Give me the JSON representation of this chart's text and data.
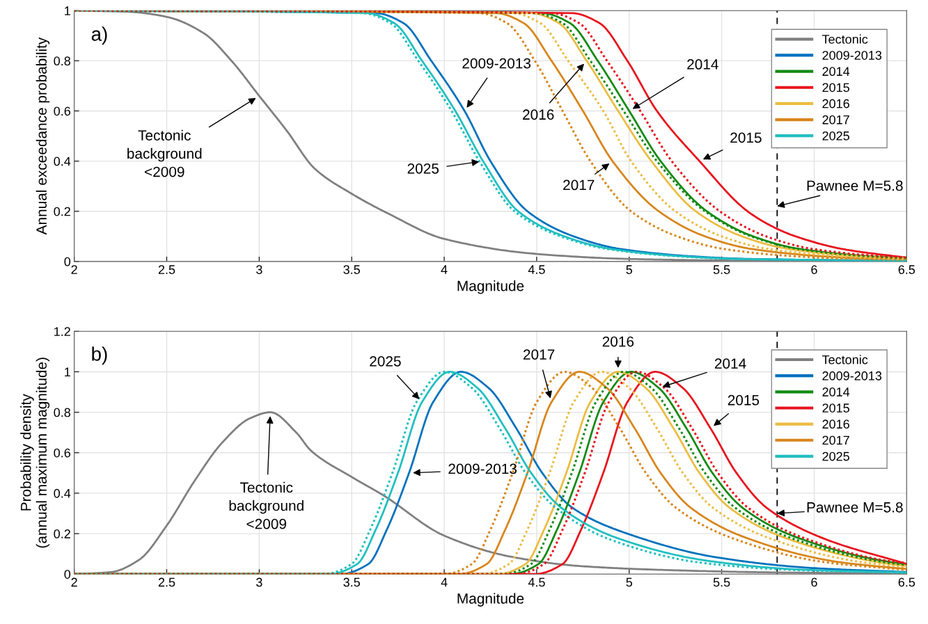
{
  "chart_data": [
    {
      "type": "line",
      "xlabel": "Magnitude",
      "ylabel": "Annual exceedance probability",
      "xlim": [
        2,
        6.5
      ],
      "ylim": [
        0,
        1
      ],
      "xticks": [
        2,
        2.5,
        3,
        3.5,
        4,
        4.5,
        5,
        5.5,
        6,
        6.5
      ],
      "yticks": [
        0,
        0.2,
        0.4,
        0.6,
        0.8,
        1
      ],
      "grid": true,
      "legend": "top right",
      "marker": "none",
      "series": [
        {
          "name": "Tectonic",
          "color": "#808080",
          "x": [
            2,
            2.3,
            2.5,
            2.7,
            2.85,
            3.0,
            3.15,
            3.3,
            3.5,
            3.7,
            4.0,
            4.5,
            5.0,
            5.5,
            6.0,
            6.5
          ],
          "values": [
            1,
            0.995,
            0.975,
            0.91,
            0.8,
            0.66,
            0.52,
            0.37,
            0.27,
            0.19,
            0.09,
            0.03,
            0.01,
            0.004,
            0.001,
            0
          ]
        },
        {
          "name": "2009-2013",
          "color": "#0072bd",
          "x": [
            2,
            3.63,
            3.78,
            3.93,
            4.11,
            4.25,
            4.45,
            4.7,
            4.95,
            5.35,
            5.65,
            6.5
          ],
          "values": [
            1,
            0.99,
            0.95,
            0.8,
            0.6,
            0.4,
            0.2,
            0.1,
            0.05,
            0.02,
            0.01,
            0.003
          ]
        },
        {
          "name": "2014",
          "color": "#138a13",
          "x": [
            2,
            4.53,
            4.68,
            4.83,
            5.0,
            5.17,
            5.42,
            5.67,
            5.92,
            6.32,
            6.5
          ],
          "values": [
            1,
            0.99,
            0.95,
            0.8,
            0.6,
            0.4,
            0.2,
            0.1,
            0.05,
            0.02,
            0.014
          ]
        },
        {
          "name": "2015",
          "color": "#e8141e",
          "x": [
            2,
            4.69,
            4.84,
            4.99,
            5.15,
            5.38,
            5.64,
            5.8,
            5.9,
            6.15,
            6.5
          ],
          "values": [
            1,
            0.99,
            0.95,
            0.8,
            0.6,
            0.4,
            0.2,
            0.13,
            0.1,
            0.05,
            0.015
          ]
        },
        {
          "name": "2016",
          "color": "#ecbc42",
          "x": [
            2,
            4.47,
            4.62,
            4.77,
            4.94,
            5.12,
            5.36,
            5.61,
            5.86,
            6.26,
            6.5
          ],
          "values": [
            1,
            0.99,
            0.95,
            0.8,
            0.6,
            0.4,
            0.2,
            0.1,
            0.05,
            0.02,
            0.012
          ]
        },
        {
          "name": "2017",
          "color": "#d8861c",
          "x": [
            2,
            4.28,
            4.43,
            4.58,
            4.75,
            4.91,
            5.16,
            5.41,
            5.66,
            6.06,
            6.36,
            6.5
          ],
          "values": [
            1,
            0.99,
            0.95,
            0.8,
            0.6,
            0.4,
            0.2,
            0.1,
            0.05,
            0.02,
            0.01,
            0.008
          ]
        },
        {
          "name": "2025",
          "color": "#22bfc0",
          "x": [
            2,
            3.58,
            3.73,
            3.88,
            4.06,
            4.21,
            4.4,
            4.65,
            4.9,
            5.3,
            5.6,
            6.5
          ],
          "values": [
            1,
            0.99,
            0.95,
            0.8,
            0.6,
            0.4,
            0.2,
            0.1,
            0.05,
            0.02,
            0.01,
            0.003
          ]
        },
        {
          "color": "#22bfc0",
          "line_style": "dotted",
          "x": [
            2,
            3.56,
            3.71,
            3.86,
            4.04,
            4.19,
            4.38,
            4.63,
            4.88,
            5.28,
            5.58,
            6.5
          ],
          "values": [
            1,
            0.99,
            0.95,
            0.8,
            0.6,
            0.4,
            0.2,
            0.1,
            0.05,
            0.02,
            0.01,
            0.003
          ]
        },
        {
          "color": "#d8861c",
          "line_style": "dotted",
          "x": [
            2,
            4.19,
            4.34,
            4.49,
            4.64,
            4.79,
            5.01,
            5.26,
            5.51,
            5.91,
            6.21,
            6.5
          ],
          "values": [
            1,
            0.99,
            0.95,
            0.8,
            0.6,
            0.4,
            0.2,
            0.1,
            0.05,
            0.02,
            0.01,
            0.006
          ]
        },
        {
          "color": "#ecbc42",
          "line_style": "dotted",
          "x": [
            2,
            4.37,
            4.52,
            4.67,
            4.86,
            5.01,
            5.25,
            5.5,
            5.75,
            6.15,
            6.45,
            6.5
          ],
          "values": [
            1,
            0.99,
            0.95,
            0.8,
            0.6,
            0.4,
            0.2,
            0.1,
            0.05,
            0.02,
            0.01,
            0.009
          ]
        },
        {
          "color": "#138a13",
          "line_style": "dotted",
          "x": [
            2,
            4.49,
            4.64,
            4.79,
            4.97,
            5.15,
            5.41,
            5.66,
            5.91,
            6.31,
            6.5
          ],
          "values": [
            1,
            0.99,
            0.95,
            0.8,
            0.6,
            0.4,
            0.2,
            0.1,
            0.05,
            0.02,
            0.014
          ]
        },
        {
          "color": "#e8141e",
          "line_style": "dotted",
          "x": [
            2,
            4.58,
            4.73,
            4.88,
            5.06,
            5.23,
            5.49,
            5.74,
            5.99,
            6.39,
            6.5
          ],
          "values": [
            1,
            0.99,
            0.95,
            0.8,
            0.6,
            0.4,
            0.2,
            0.1,
            0.05,
            0.02,
            0.016
          ]
        }
      ],
      "ref_lines": [
        {
          "axis": "x",
          "value": 5.8,
          "label": "Pawnee M=5.8",
          "color": "#000000",
          "line_style": "dashed"
        }
      ],
      "annotations": [
        "a)",
        {
          "text": "Tectonic\nbackground\n<2009",
          "x": 3.0,
          "y": 0.66
        },
        {
          "text": "2009-2013",
          "x": 4.11,
          "y": 0.6
        },
        {
          "text": "2025",
          "x": 4.21,
          "y": 0.4
        },
        {
          "text": "2016",
          "x": 4.77,
          "y": 0.8
        },
        {
          "text": "2017",
          "x": 4.91,
          "y": 0.4
        },
        {
          "text": "2014",
          "x": 5.0,
          "y": 0.6
        },
        {
          "text": "2015",
          "x": 5.38,
          "y": 0.4
        }
      ]
    },
    {
      "type": "line",
      "xlabel": "Magnitude",
      "ylabel": "Probability density\n(annual maximum magnitude)",
      "xlim": [
        2,
        6.5
      ],
      "ylim": [
        0,
        1.2
      ],
      "xticks": [
        2,
        2.5,
        3,
        3.5,
        4,
        4.5,
        5,
        5.5,
        6,
        6.5
      ],
      "yticks": [
        0,
        0.2,
        0.4,
        0.6,
        0.8,
        1,
        1.2
      ],
      "grid": true,
      "legend": "top right",
      "marker": "none",
      "series": [
        {
          "name": "Tectonic",
          "color": "#808080",
          "x": [
            2,
            2.2,
            2.35,
            2.5,
            2.65,
            2.8,
            2.95,
            3.06,
            3.2,
            3.28,
            3.5,
            3.67,
            4.0,
            4.36,
            4.73,
            5.2,
            5.8,
            6.5
          ],
          "values": [
            0,
            0.01,
            0.07,
            0.24,
            0.46,
            0.65,
            0.77,
            0.8,
            0.7,
            0.61,
            0.48,
            0.39,
            0.19,
            0.086,
            0.04,
            0.02,
            0.008,
            0.003
          ]
        },
        {
          "name": "2009-2013",
          "color": "#0072bd",
          "x": [
            2,
            3.44,
            3.59,
            3.69,
            3.81,
            3.94,
            4.09,
            4.24,
            4.39,
            4.53,
            4.69,
            4.99,
            5.49,
            5.99,
            6.5
          ],
          "values": [
            0,
            0,
            0.05,
            0.22,
            0.5,
            0.85,
            1,
            0.92,
            0.72,
            0.5,
            0.33,
            0.2,
            0.08,
            0.03,
            0.01
          ]
        },
        {
          "name": "2014",
          "color": "#138a13",
          "x": [
            2,
            4.36,
            4.51,
            4.61,
            4.73,
            4.86,
            5.01,
            5.16,
            5.31,
            5.45,
            5.61,
            5.91,
            6.41,
            6.5
          ],
          "values": [
            0,
            0,
            0.05,
            0.22,
            0.5,
            0.85,
            1,
            0.92,
            0.72,
            0.5,
            0.33,
            0.18,
            0.06,
            0.05
          ]
        },
        {
          "name": "2015",
          "color": "#e8141e",
          "x": [
            2,
            4.49,
            4.64,
            4.74,
            4.86,
            4.99,
            5.14,
            5.29,
            5.44,
            5.58,
            5.74,
            6.04,
            6.5
          ],
          "values": [
            0,
            0,
            0.05,
            0.22,
            0.5,
            0.85,
            1,
            0.92,
            0.72,
            0.5,
            0.33,
            0.18,
            0.05
          ]
        },
        {
          "name": "2016",
          "color": "#ecbc42",
          "x": [
            2,
            4.29,
            4.44,
            4.54,
            4.66,
            4.79,
            4.94,
            5.09,
            5.24,
            5.38,
            5.54,
            5.84,
            6.34,
            6.5
          ],
          "values": [
            0,
            0,
            0.05,
            0.22,
            0.5,
            0.85,
            1,
            0.92,
            0.72,
            0.5,
            0.33,
            0.18,
            0.06,
            0.04
          ]
        },
        {
          "name": "2017",
          "color": "#d8861c",
          "x": [
            2,
            4.08,
            4.23,
            4.33,
            4.45,
            4.58,
            4.73,
            4.88,
            5.03,
            5.17,
            5.33,
            5.63,
            6.13,
            6.5
          ],
          "values": [
            0,
            0,
            0.05,
            0.22,
            0.5,
            0.85,
            1,
            0.92,
            0.72,
            0.5,
            0.33,
            0.18,
            0.06,
            0.025
          ]
        },
        {
          "name": "2025",
          "color": "#22bfc0",
          "x": [
            2,
            3.38,
            3.53,
            3.63,
            3.75,
            3.88,
            4.03,
            4.18,
            4.33,
            4.47,
            4.63,
            4.93,
            5.43,
            5.93,
            6.5
          ],
          "values": [
            0,
            0,
            0.05,
            0.22,
            0.5,
            0.85,
            1,
            0.92,
            0.72,
            0.5,
            0.33,
            0.18,
            0.065,
            0.022,
            0.008
          ]
        },
        {
          "color": "#22bfc0",
          "line_style": "dotted",
          "x": [
            2,
            3.35,
            3.5,
            3.6,
            3.72,
            3.85,
            4.0,
            4.15,
            4.3,
            4.44,
            4.6,
            4.9,
            5.4,
            5.9,
            6.5
          ],
          "values": [
            0,
            0,
            0.05,
            0.22,
            0.5,
            0.85,
            1,
            0.92,
            0.72,
            0.5,
            0.33,
            0.17,
            0.055,
            0.02,
            0.006
          ]
        },
        {
          "color": "#d8861c",
          "line_style": "dotted",
          "x": [
            2,
            4.0,
            4.15,
            4.25,
            4.37,
            4.5,
            4.65,
            4.8,
            4.95,
            5.09,
            5.25,
            5.55,
            6.05,
            6.5
          ],
          "values": [
            0,
            0,
            0.05,
            0.22,
            0.5,
            0.85,
            1,
            0.92,
            0.72,
            0.5,
            0.33,
            0.18,
            0.06,
            0.02
          ]
        },
        {
          "color": "#ecbc42",
          "line_style": "dotted",
          "x": [
            2,
            4.2,
            4.35,
            4.45,
            4.57,
            4.7,
            4.85,
            5.0,
            5.15,
            5.29,
            5.45,
            5.75,
            6.25,
            6.5
          ],
          "values": [
            0,
            0,
            0.05,
            0.22,
            0.5,
            0.85,
            1,
            0.92,
            0.72,
            0.5,
            0.33,
            0.18,
            0.06,
            0.035
          ]
        },
        {
          "color": "#138a13",
          "line_style": "dotted",
          "x": [
            2,
            4.32,
            4.47,
            4.57,
            4.69,
            4.82,
            4.97,
            5.12,
            5.27,
            5.41,
            5.57,
            5.87,
            6.37,
            6.5
          ],
          "values": [
            0,
            0,
            0.05,
            0.22,
            0.5,
            0.85,
            1,
            0.92,
            0.72,
            0.5,
            0.33,
            0.18,
            0.06,
            0.045
          ]
        },
        {
          "color": "#e8141e",
          "line_style": "dotted",
          "x": [
            2,
            4.39,
            4.54,
            4.64,
            4.76,
            4.89,
            5.04,
            5.19,
            5.34,
            5.48,
            5.64,
            5.94,
            6.44,
            6.5
          ],
          "values": [
            0,
            0,
            0.05,
            0.22,
            0.5,
            0.85,
            1,
            0.92,
            0.72,
            0.5,
            0.33,
            0.18,
            0.06,
            0.055
          ]
        }
      ],
      "ref_lines": [
        {
          "axis": "x",
          "value": 5.8,
          "label": "Pawnee M=5.8",
          "color": "#000000",
          "line_style": "dashed"
        }
      ],
      "annotations": [
        "b)",
        {
          "text": "Tectonic\nbackground\n<2009",
          "x": 3.06,
          "y": 0.8
        },
        {
          "text": "2025",
          "x": 3.88,
          "y": 0.85
        },
        {
          "text": "2009-2013",
          "x": 3.81,
          "y": 0.5
        },
        {
          "text": "2017",
          "x": 4.58,
          "y": 0.85
        },
        {
          "text": "2016",
          "x": 4.94,
          "y": 1
        },
        {
          "text": "2014",
          "x": 5.16,
          "y": 0.92
        },
        {
          "text": "2015",
          "x": 5.44,
          "y": 0.72
        }
      ]
    }
  ]
}
